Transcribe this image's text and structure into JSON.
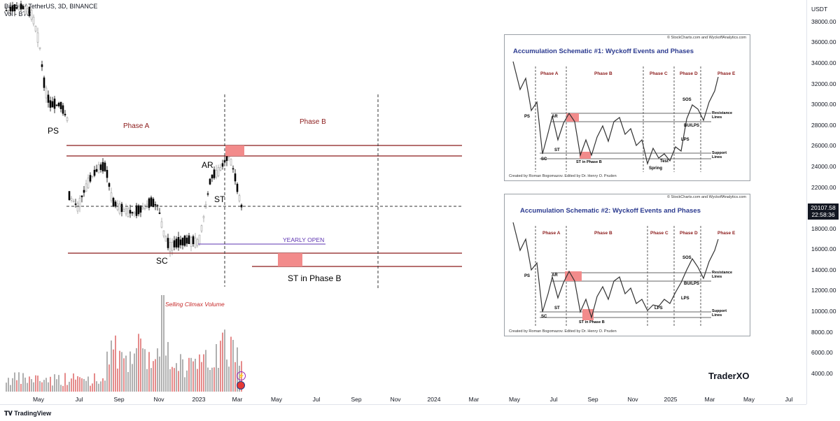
{
  "legend": {
    "symbol_line": "Bitcoin / TetherUS, 3D, BINANCE",
    "volume_line": "Vol - BTC"
  },
  "price_axis": {
    "currency": "USDT",
    "ticks": [
      "38000.00",
      "36000.00",
      "34000.00",
      "32000.00",
      "30000.00",
      "28000.00",
      "26000.00",
      "24000.00",
      "22000.00",
      "18000.00",
      "16000.00",
      "14000.00",
      "12000.00",
      "10000.00",
      "8000.00",
      "6000.00",
      "4000.00"
    ],
    "last_price": "20107.58",
    "countdown": "22:58:36"
  },
  "time_axis": {
    "ticks": [
      "May",
      "Jul",
      "Sep",
      "Nov",
      "2023",
      "Mar",
      "May",
      "Jul",
      "Sep",
      "Nov",
      "2024",
      "Mar",
      "May",
      "Jul",
      "Sep",
      "Nov",
      "2025",
      "Mar",
      "May",
      "Jul"
    ]
  },
  "annotations": {
    "ps": "PS",
    "phase_a": "Phase A",
    "phase_b": "Phase B",
    "ar": "AR",
    "st": "ST",
    "sc": "SC",
    "yearly_open": "YEARLY OPEN",
    "st_phase_b": "ST in Phase B",
    "selling_climax_volume": "Selling Climax Volume"
  },
  "schematic1": {
    "title": "Accumulation Schematic #1: Wyckoff Events and Phases",
    "copyright": "© StockCharts.com and WyckoffAnalytics.com",
    "credit": "Created by Roman Bogomazov. Edited by Dr. Henry O. Pruden",
    "phases": [
      "Phase A",
      "Phase B",
      "Phase C",
      "Phase D",
      "Phase E"
    ],
    "events": {
      "ps": "PS",
      "ar": "AR",
      "sc": "SC",
      "st": "ST",
      "st_phase_b": "ST in Phase B",
      "spring": "Spring",
      "test": "Test",
      "lps": "LPS",
      "sos": "SOS",
      "bu_lps": "BU/LPS",
      "resistance": "Resistance",
      "resistance2": "Lines",
      "support": "Support",
      "support2": "Lines"
    }
  },
  "schematic2": {
    "title": "Accumulation Schematic #2: Wyckoff Events and Phases",
    "copyright": "© StockCharts.com and WyckoffAnalytics.com",
    "credit": "Created by Roman Bogomazov. Edited by Dr. Henry O. Pruden",
    "phases": [
      "Phase A",
      "Phase B",
      "Phase C",
      "Phase D",
      "Phase E"
    ],
    "events": {
      "ps": "PS",
      "ar": "AR",
      "sc": "SC",
      "st": "ST",
      "st_phase_b": "ST in Phase B",
      "lps": "LPS",
      "lps2": "LPS",
      "sos": "SOS",
      "bu_lps": "BU/LPS",
      "resistance": "Resistance",
      "resistance2": "Lines",
      "support": "Support",
      "support2": "Lines"
    }
  },
  "watermark": "TraderXO",
  "footer": "TradingView",
  "colors": {
    "resistance_line": "#8b1a1a",
    "highlight_box": "#f28b8b",
    "up_candle": "#9e9e9e",
    "down_candle": "#000000",
    "volume_bar": "#b0b0b0",
    "volume_red": "#e58b8b",
    "yearly_open_line": "#5e35b1"
  }
}
